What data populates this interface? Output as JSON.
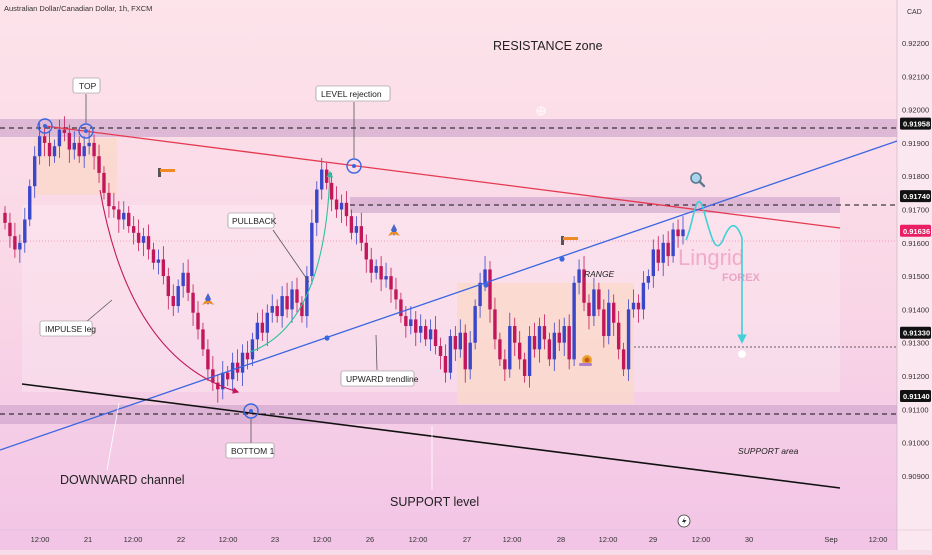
{
  "header": {
    "symbol_line": "Australian Dollar/Canadian Dollar, 1h, FXCM",
    "currency": "CAD"
  },
  "watermark": {
    "line1": "Lingrid",
    "line2": "FOREX"
  },
  "colors": {
    "bull": "#3b47c9",
    "bear": "#c2185b",
    "resistance_line": "#e53950",
    "trendline": "#3a66e0",
    "channel": "#111111",
    "price_label": "#e91e63",
    "projection": "#3fd0d8",
    "curve_down": "#c2185b",
    "curve_up": "#2cc0a0"
  },
  "chart_data": {
    "type": "candlestick",
    "title": "Australian Dollar/Canadian Dollar, 1h, FXCM",
    "y_unit": "CAD",
    "ylim": [
      0.908,
      0.9232
    ],
    "y_ticks": [
      "0.90900",
      "0.91000",
      "0.91100",
      "0.91200",
      "0.91300",
      "0.91400",
      "0.91500",
      "0.91600",
      "0.91700",
      "0.91800",
      "0.91900",
      "0.92000",
      "0.92100",
      "0.92200"
    ],
    "x_ticks": [
      "12:00",
      "21",
      "12:00",
      "22",
      "12:00",
      "23",
      "12:00",
      "26",
      "12:00",
      "27",
      "12:00",
      "28",
      "12:00",
      "29",
      "12:00",
      "30",
      "Sep",
      "12:00"
    ],
    "levels": [
      {
        "name": "resistance",
        "value": 0.91958,
        "label": "0.91958"
      },
      {
        "name": "level",
        "value": 0.9174,
        "label": "0.91740"
      },
      {
        "name": "last_price",
        "value": 0.91636,
        "label": "0.91636"
      },
      {
        "name": "target",
        "value": 0.9133,
        "label": "0.91330"
      },
      {
        "name": "support",
        "value": 0.9114,
        "label": "0.91140"
      }
    ],
    "close_series": [
      0.9166,
      0.9162,
      0.9158,
      0.916,
      0.9167,
      0.9177,
      0.9186,
      0.9192,
      0.919,
      0.9186,
      0.9189,
      0.9194,
      0.9193,
      0.9188,
      0.919,
      0.9186,
      0.9189,
      0.919,
      0.9186,
      0.9181,
      0.9175,
      0.9171,
      0.917,
      0.9167,
      0.9169,
      0.9165,
      0.9163,
      0.916,
      0.9162,
      0.9158,
      0.9154,
      0.9155,
      0.915,
      0.9144,
      0.9141,
      0.9147,
      0.9151,
      0.9145,
      0.9139,
      0.9134,
      0.9128,
      0.9122,
      0.9118,
      0.9116,
      0.9121,
      0.9119,
      0.9124,
      0.9121,
      0.9127,
      0.9125,
      0.9131,
      0.9136,
      0.9133,
      0.9139,
      0.9141,
      0.9138,
      0.9144,
      0.914,
      0.9146,
      0.9142,
      0.9138,
      0.915,
      0.9166,
      0.9176,
      0.9182,
      0.9178,
      0.9173,
      0.917,
      0.9172,
      0.9168,
      0.9163,
      0.9165,
      0.916,
      0.9155,
      0.9151,
      0.9153,
      0.9149,
      0.915,
      0.9146,
      0.9143,
      0.9138,
      0.9135,
      0.9137,
      0.9133,
      0.9135,
      0.9131,
      0.9134,
      0.9129,
      0.9126,
      0.9121,
      0.9132,
      0.9128,
      0.9133,
      0.9122,
      0.913,
      0.9141,
      0.9148,
      0.9152,
      0.914,
      0.9131,
      0.9125,
      0.9122,
      0.9135,
      0.913,
      0.9125,
      0.912,
      0.9132,
      0.9128,
      0.9135,
      0.9131,
      0.9125,
      0.9133,
      0.913,
      0.9135,
      0.9125,
      0.9148,
      0.9152,
      0.9142,
      0.9138,
      0.9146,
      0.914,
      0.9132,
      0.9142,
      0.9136,
      0.9128,
      0.9122,
      0.914,
      0.9142,
      0.914,
      0.9148,
      0.915,
      0.9158,
      0.9154,
      0.916,
      0.9156,
      0.9164,
      0.9162,
      0.9164
    ],
    "annotations": [
      {
        "id": "resistance",
        "text": "RESISTANCE zone",
        "style": "plain"
      },
      {
        "id": "top",
        "text": "TOP",
        "style": "box"
      },
      {
        "id": "level",
        "text": "LEVEL rejection",
        "style": "box"
      },
      {
        "id": "pullback",
        "text": "PULLBACK",
        "style": "box"
      },
      {
        "id": "range",
        "text": "RANGE",
        "style": "italic"
      },
      {
        "id": "impulse",
        "text": "IMPULSE leg",
        "style": "box"
      },
      {
        "id": "upward",
        "text": "UPWARD trendline",
        "style": "box"
      },
      {
        "id": "bottom",
        "text": "BOTTOM 1",
        "style": "box"
      },
      {
        "id": "support_area",
        "text": "SUPPORT area",
        "style": "italic"
      },
      {
        "id": "downward",
        "text": "DOWNWARD channel",
        "style": "plain"
      },
      {
        "id": "support_level",
        "text": "SUPPORT level",
        "style": "plain"
      }
    ]
  }
}
